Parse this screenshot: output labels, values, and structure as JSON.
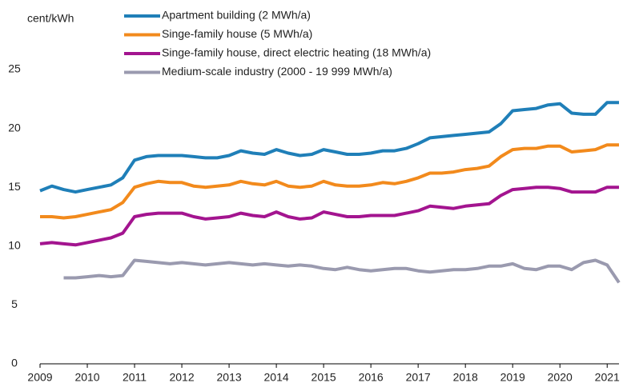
{
  "chart_data": {
    "type": "line",
    "y_label": "cent/kWh",
    "x": [
      2009,
      2009.25,
      2009.5,
      2009.75,
      2010,
      2010.25,
      2010.5,
      2010.75,
      2011,
      2011.25,
      2011.5,
      2011.75,
      2012,
      2012.25,
      2012.5,
      2012.75,
      2013,
      2013.25,
      2013.5,
      2013.75,
      2014,
      2014.25,
      2014.5,
      2014.75,
      2015,
      2015.25,
      2015.5,
      2015.75,
      2016,
      2016.25,
      2016.5,
      2016.75,
      2017,
      2017.25,
      2017.5,
      2017.75,
      2018,
      2018.25,
      2018.5,
      2018.75,
      2019,
      2019.25,
      2019.5,
      2019.75,
      2020,
      2020.25,
      2020.5,
      2020.75,
      2021,
      2021.25
    ],
    "series": [
      {
        "name": "Apartment building (2 MWh/a)",
        "color": "#1f7fb8",
        "values": [
          14.7,
          15.1,
          14.8,
          14.6,
          14.8,
          15.0,
          15.2,
          15.8,
          17.3,
          17.6,
          17.7,
          17.7,
          17.7,
          17.6,
          17.5,
          17.5,
          17.7,
          18.1,
          17.9,
          17.8,
          18.2,
          17.9,
          17.7,
          17.8,
          18.2,
          18.0,
          17.8,
          17.8,
          17.9,
          18.1,
          18.1,
          18.3,
          18.7,
          19.2,
          19.3,
          19.4,
          19.5,
          19.6,
          19.7,
          20.4,
          21.5,
          21.6,
          21.7,
          22.0,
          22.1,
          21.3,
          21.2,
          21.2,
          22.2,
          22.2
        ]
      },
      {
        "name": "Singe-family house (5 MWh/a)",
        "color": "#f28a1c",
        "values": [
          12.5,
          12.5,
          12.4,
          12.5,
          12.7,
          12.9,
          13.1,
          13.7,
          15.0,
          15.3,
          15.5,
          15.4,
          15.4,
          15.1,
          15.0,
          15.1,
          15.2,
          15.5,
          15.3,
          15.2,
          15.5,
          15.1,
          15.0,
          15.1,
          15.5,
          15.2,
          15.1,
          15.1,
          15.2,
          15.4,
          15.3,
          15.5,
          15.8,
          16.2,
          16.2,
          16.3,
          16.5,
          16.6,
          16.8,
          17.6,
          18.2,
          18.3,
          18.3,
          18.5,
          18.5,
          18.0,
          18.1,
          18.2,
          18.6,
          18.6
        ]
      },
      {
        "name": "Singe-family house, direct electric heating (18 MWh/a)",
        "color": "#a3148f",
        "values": [
          10.2,
          10.3,
          10.2,
          10.1,
          10.3,
          10.5,
          10.7,
          11.1,
          12.5,
          12.7,
          12.8,
          12.8,
          12.8,
          12.5,
          12.3,
          12.4,
          12.5,
          12.8,
          12.6,
          12.5,
          12.9,
          12.5,
          12.3,
          12.4,
          12.9,
          12.7,
          12.5,
          12.5,
          12.6,
          12.6,
          12.6,
          12.8,
          13.0,
          13.4,
          13.3,
          13.2,
          13.4,
          13.5,
          13.6,
          14.3,
          14.8,
          14.9,
          15.0,
          15.0,
          14.9,
          14.6,
          14.6,
          14.6,
          15.0,
          15.0
        ]
      },
      {
        "name": "Medium-scale industry (2000 - 19 999 MWh/a)",
        "color": "#9a9aaf",
        "values": [
          null,
          null,
          7.3,
          7.3,
          7.4,
          7.5,
          7.4,
          7.5,
          8.8,
          8.7,
          8.6,
          8.5,
          8.6,
          8.5,
          8.4,
          8.5,
          8.6,
          8.5,
          8.4,
          8.5,
          8.4,
          8.3,
          8.4,
          8.3,
          8.1,
          8.0,
          8.2,
          8.0,
          7.9,
          8.0,
          8.1,
          8.1,
          7.9,
          7.8,
          7.9,
          8.0,
          8.0,
          8.1,
          8.3,
          8.3,
          8.5,
          8.1,
          8.0,
          8.3,
          8.3,
          8.0,
          8.6,
          8.8,
          8.4,
          6.9
        ]
      }
    ],
    "xlim": [
      2009,
      2021.25
    ],
    "xticks": [
      2009,
      2010,
      2011,
      2012,
      2013,
      2014,
      2015,
      2016,
      2017,
      2018,
      2019,
      2020,
      2021
    ],
    "ylim": [
      0,
      25
    ],
    "yticks": [
      0,
      5,
      10,
      15,
      20,
      25
    ],
    "grid": false
  }
}
